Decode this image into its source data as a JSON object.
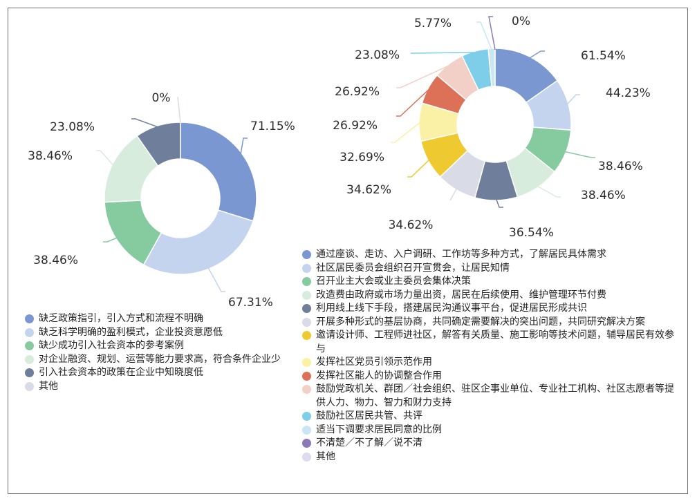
{
  "chart_data": [
    {
      "type": "pie",
      "subtype": "donut",
      "categories": [
        "缺乏政策指引，引入方式和流程不明确",
        "缺乏科学明确的盈利模式，企业投资意愿低",
        "缺少成功引入社会资本的参考案例",
        "对企业融资、规划、运营等能力要求高，符合条件企业少",
        "引入社会资本的政策在企业中知晓度低",
        "其他"
      ],
      "values": [
        71.15,
        67.31,
        38.46,
        38.46,
        23.08,
        0
      ],
      "value_labels": [
        "71.15%",
        "67.31%",
        "38.46%",
        "38.46%",
        "23.08%",
        "0%"
      ],
      "colors": [
        "#7b97d1",
        "#c5d4ee",
        "#86cba0",
        "#d7ecdd",
        "#6f7e9b",
        "#d9dbe6"
      ],
      "legend_position": "bottom"
    },
    {
      "type": "pie",
      "subtype": "donut",
      "categories": [
        "通过座谈、走访、入户调研、工作坊等多种方式，了解居民具体需求",
        "社区居民委员会组织召开宣贯会，让居民知情",
        "召开业主大会或业主委员会集体决策",
        "改造费由政府或市场力量出资，居民在后续使用、维护管理环节付费",
        "利用线上线下手段，搭建居民沟通议事平台，促进居民形成共识",
        "开展多种形式的基层协商，共同确定需要解决的突出问题，共同研究解决方案",
        "邀请设计师、工程师进社区，解答有关质量、施工影响等技术问题，辅导居民有效参与",
        "发挥社区党员引领示范作用",
        "发挥社区能人的协调整合作用",
        "鼓励党政机关、群团／社会组织、驻区企事业单位、专业社工机构、社区志愿者等提供人力、物力、智力和财力支持",
        "鼓励社区居民共管、共评",
        "适当下调要求居民同意的比例",
        "不清楚／不了解／说不清",
        "其他"
      ],
      "values": [
        61.54,
        44.23,
        38.46,
        38.46,
        36.54,
        34.62,
        34.62,
        32.69,
        26.92,
        26.92,
        23.08,
        5.77,
        0,
        0
      ],
      "value_labels": [
        "61.54%",
        "44.23%",
        "38.46%",
        "38.46%",
        "36.54%",
        "34.62%",
        "34.62%",
        "32.69%",
        "26.92%",
        "26.92%",
        "23.08%",
        "5.77%",
        "0%",
        ""
      ],
      "colors": [
        "#7b97d1",
        "#c5d4ee",
        "#86cba0",
        "#d7ecdd",
        "#6f7e9b",
        "#d9dbe6",
        "#eec92f",
        "#faf0a6",
        "#dd7158",
        "#f2d0c7",
        "#7ecde9",
        "#cbe6f3",
        "#8b78b6",
        "#dedbee"
      ],
      "legend_position": "bottom"
    }
  ]
}
